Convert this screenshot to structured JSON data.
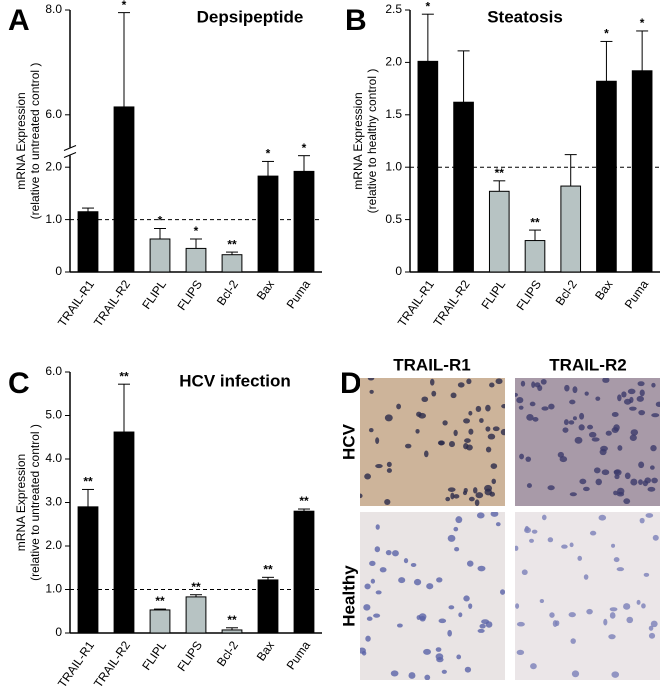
{
  "chart_data": [
    {
      "type": "bar",
      "panel": "A",
      "title": "Depsipeptide",
      "ylabel": [
        "mRNA Expression",
        "(relative to  untreated control )"
      ],
      "categories": [
        "TRAIL-R1",
        "TRAIL-R2",
        "FLIPL",
        "FLIPS",
        "Bcl-2",
        "Bax",
        "Puma"
      ],
      "values": [
        1.15,
        6.15,
        0.63,
        0.45,
        0.33,
        1.83,
        1.92
      ],
      "errors": [
        0.07,
        1.8,
        0.2,
        0.18,
        0.05,
        0.28,
        0.3
      ],
      "significance": [
        null,
        "*",
        "*",
        "*",
        "**",
        "*",
        "*"
      ],
      "colors": [
        "#000000",
        "#000000",
        "#b7c3c3",
        "#b7c3c3",
        "#b7c3c3",
        "#000000",
        "#000000"
      ],
      "ylim": [
        0,
        8
      ],
      "ybreak": [
        2.3,
        5.3
      ],
      "yticks": [
        0,
        {
          "value": 1,
          "label": "1.0"
        },
        {
          "value": 2,
          "label": "2.0"
        },
        {
          "value": 6,
          "label": "6.0"
        },
        {
          "value": 8,
          "label": "8.0"
        }
      ],
      "reference_line": 1
    },
    {
      "type": "bar",
      "panel": "B",
      "title": "Steatosis",
      "ylabel": [
        "mRNA Expression",
        "(relative to  healthy control )"
      ],
      "categories": [
        "TRAIL-R1",
        "TRAIL-R2",
        "FLIPL",
        "FLIPS",
        "Bcl-2",
        "Bax",
        "Puma"
      ],
      "values": [
        2.01,
        1.62,
        0.77,
        0.3,
        0.82,
        1.82,
        1.92
      ],
      "errors": [
        0.45,
        0.49,
        0.1,
        0.1,
        0.3,
        0.38,
        0.38
      ],
      "significance": [
        "*",
        null,
        "**",
        "**",
        null,
        "*",
        "*"
      ],
      "colors": [
        "#000000",
        "#000000",
        "#b7c3c3",
        "#b7c3c3",
        "#b7c3c3",
        "#000000",
        "#000000"
      ],
      "ylim": [
        0,
        2.5
      ],
      "yticks": [
        0,
        0.5,
        {
          "value": 1,
          "label": "1.0"
        },
        1.5,
        {
          "value": 2,
          "label": "2.0"
        },
        2.5
      ],
      "reference_line": 1
    },
    {
      "type": "bar",
      "panel": "C",
      "title": "HCV infection",
      "ylabel": [
        "mRNA Expression",
        "(relative to  untreated control )"
      ],
      "categories": [
        "TRAIL-R1",
        "TRAIL-R2",
        "FLIPL",
        "FLIPS",
        "Bcl-2",
        "Bax",
        "Puma"
      ],
      "values": [
        2.9,
        4.62,
        0.53,
        0.83,
        0.07,
        1.22,
        2.8
      ],
      "errors": [
        0.4,
        1.1,
        0.02,
        0.05,
        0.05,
        0.06,
        0.05
      ],
      "significance": [
        "**",
        "**",
        "**",
        "**",
        "**",
        "**",
        "**"
      ],
      "colors": [
        "#000000",
        "#000000",
        "#b7c3c3",
        "#b7c3c3",
        "#b7c3c3",
        "#000000",
        "#000000"
      ],
      "ylim": [
        0,
        6
      ],
      "yticks": [
        0,
        {
          "value": 1,
          "label": "1.0"
        },
        {
          "value": 2,
          "label": "2.0"
        },
        {
          "value": 3,
          "label": "3.0"
        },
        {
          "value": 4,
          "label": "4.0"
        },
        {
          "value": 5,
          "label": "5.0"
        },
        {
          "value": 6,
          "label": "6.0"
        }
      ],
      "reference_line": 1
    }
  ],
  "panel_d": {
    "label": "D",
    "columns": [
      "TRAIL-R1",
      "TRAIL-R2"
    ],
    "rows": [
      "HCV",
      "Healthy"
    ]
  }
}
